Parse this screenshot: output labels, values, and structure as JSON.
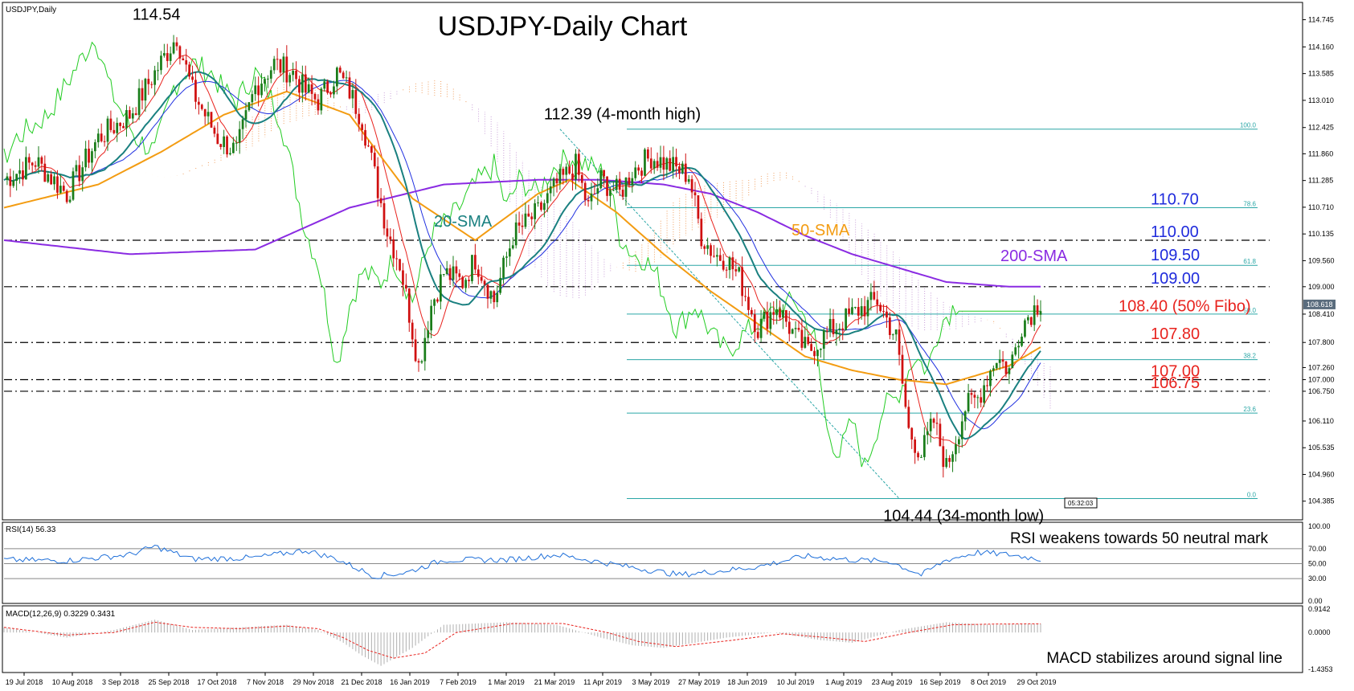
{
  "chart_data": {
    "type": "line",
    "main_panel_label": "USDJPY,Daily",
    "title": "USDJPY-Daily Chart",
    "ylim": [
      104.0,
      115.1
    ],
    "y_ticks": [
      "114.745",
      "114.160",
      "113.585",
      "113.010",
      "112.425",
      "111.860",
      "111.285",
      "110.710",
      "110.135",
      "109.560",
      "109.000",
      "108.410",
      "107.800",
      "107.260",
      "107.000",
      "106.750",
      "106.110",
      "105.535",
      "104.960",
      "104.385"
    ],
    "x_ticks": [
      "19 Jul 2018",
      "10 Aug 2018",
      "3 Sep 2018",
      "25 Sep 2018",
      "17 Oct 2018",
      "7 Nov 2018",
      "29 Nov 2018",
      "21 Dec 2018",
      "16 Jan 2019",
      "7 Feb 2019",
      "1 Mar 2019",
      "21 Mar 2019",
      "11 Apr 2019",
      "3 May 2019",
      "27 May 2019",
      "18 Jun 2019",
      "10 Jul 2019",
      "1 Aug 2019",
      "23 Aug 2019",
      "16 Sep 2019",
      "8 Oct 2019",
      "29 Oct 2019"
    ],
    "price_anchors": {
      "x": [
        0,
        10,
        20,
        30,
        40,
        48,
        55,
        60,
        68,
        74,
        80,
        86,
        92,
        96,
        100,
        106,
        110,
        114,
        118,
        122,
        126,
        128,
        132,
        136,
        140,
        146,
        150,
        156,
        162,
        170,
        176,
        182,
        186,
        190,
        196,
        200,
        206,
        212,
        218,
        222,
        226,
        230,
        234,
        240,
        246,
        252,
        256,
        262,
        268,
        272,
        278,
        284,
        288,
        292,
        296,
        300,
        306,
        310,
        316,
        320,
        324,
        330
      ],
      "y": [
        111.3,
        111.7,
        111.0,
        112.2,
        112.7,
        113.6,
        114.4,
        113.2,
        112.2,
        111.9,
        113.3,
        113.8,
        113.6,
        113.2,
        113.0,
        113.6,
        113.2,
        112.6,
        111.4,
        110.2,
        109.5,
        108.8,
        107.3,
        108.6,
        109.3,
        109.1,
        109.6,
        108.7,
        110.1,
        110.6,
        111.2,
        111.6,
        110.7,
        111.3,
        111.0,
        111.5,
        111.8,
        111.6,
        111.4,
        110.1,
        109.7,
        109.6,
        109.2,
        108.1,
        108.6,
        107.9,
        107.6,
        108.0,
        108.3,
        108.5,
        108.7,
        107.9,
        105.9,
        105.4,
        106.1,
        105.1,
        106.4,
        106.6,
        107.5,
        107.2,
        108.2,
        108.7
      ]
    },
    "lows_highs": [
      {
        "label": "114.54",
        "x": 46,
        "value": 114.54
      },
      {
        "label": "112.39 (4-month high)",
        "x": 177,
        "value": 112.39
      },
      {
        "label": "104.44 (34-month low)",
        "x": 285,
        "value": 104.44
      }
    ],
    "indicators": {
      "sma20_label": "20-SMA",
      "sma50_label": "50-SMA",
      "sma200_label": "200-SMA",
      "sma200_anchors": {
        "x": [
          0,
          40,
          80,
          110,
          140,
          170,
          190,
          210,
          225,
          240,
          255,
          270,
          285,
          300,
          320,
          330
        ],
        "y": [
          110.0,
          109.7,
          109.8,
          110.7,
          111.2,
          111.3,
          111.3,
          111.2,
          111.0,
          110.6,
          110.1,
          109.7,
          109.4,
          109.1,
          109.0,
          109.0
        ]
      },
      "sma50_anchors": {
        "x": [
          0,
          30,
          50,
          70,
          90,
          110,
          130,
          150,
          170,
          180,
          195,
          210,
          225,
          240,
          255,
          270,
          285,
          300,
          320,
          330
        ],
        "y": [
          110.7,
          111.2,
          111.9,
          112.7,
          113.2,
          112.7,
          110.9,
          110.0,
          111.0,
          111.3,
          110.6,
          109.7,
          108.9,
          108.2,
          107.5,
          107.2,
          107.0,
          106.9,
          107.3,
          107.7
        ]
      }
    },
    "horizontal_levels": [
      {
        "label": "110.70",
        "value": 110.7,
        "color": "#1f2bdc",
        "style": "fibo"
      },
      {
        "label": "110.00",
        "value": 110.0,
        "color": "#1f2bdc",
        "style": "dashdot"
      },
      {
        "label": "109.50",
        "value": 109.5,
        "color": "#1f2bdc",
        "style": "fibo"
      },
      {
        "label": "109.00",
        "value": 109.0,
        "color": "#1f2bdc",
        "style": "dashdot"
      },
      {
        "label": "108.40 (50% Fibo)",
        "value": 108.4,
        "color": "#e8231e",
        "style": "fibo"
      },
      {
        "label": "107.80",
        "value": 107.8,
        "color": "#e8231e",
        "style": "dashdot"
      },
      {
        "label": "107.00",
        "value": 107.0,
        "color": "#e8231e",
        "style": "dashdot"
      },
      {
        "label": "106.75",
        "value": 106.75,
        "color": "#e8231e",
        "style": "dashdot"
      }
    ],
    "fib_levels": [
      {
        "label": "100.0",
        "value": 112.39
      },
      {
        "label": "78.6",
        "value": 110.7
      },
      {
        "label": "61.8",
        "value": 109.46
      },
      {
        "label": "50.0",
        "value": 108.41
      },
      {
        "label": "38.2",
        "value": 107.43
      },
      {
        "label": "23.6",
        "value": 106.28
      },
      {
        "label": "0.0",
        "value": 104.44
      }
    ],
    "last_price_label": "108.618",
    "last_price": 108.618,
    "rsi": {
      "label": "RSI(14) 56.33",
      "ylim": [
        0,
        100
      ],
      "ticks": [
        "100.00",
        "70.00",
        "50.00",
        "30.00",
        "0.00"
      ],
      "levels": [
        70,
        50,
        30
      ],
      "annotation": "RSI weakens towards 50 neutral mark",
      "anchors": {
        "x": [
          0,
          20,
          40,
          48,
          60,
          80,
          96,
          106,
          118,
          128,
          140,
          160,
          176,
          190,
          200,
          215,
          230,
          240,
          255,
          270,
          282,
          292,
          300,
          310,
          320,
          330
        ],
        "y": [
          55,
          54,
          62,
          73,
          56,
          58,
          68,
          56,
          33,
          38,
          55,
          55,
          62,
          52,
          45,
          35,
          41,
          46,
          60,
          55,
          53,
          35,
          55,
          65,
          62,
          56
        ]
      }
    },
    "macd": {
      "label": "MACD(12,26,9) 0.3229 0.3431",
      "ylim": [
        -1.4353,
        0.9142
      ],
      "ticks": [
        "0.9142",
        "0.0000",
        "-1.4353"
      ],
      "annotation": "MACD stabilizes around signal line",
      "hist_anchors": {
        "x": [
          0,
          10,
          20,
          35,
          48,
          60,
          75,
          90,
          100,
          108,
          114,
          120,
          130,
          140,
          160,
          176,
          190,
          200,
          210,
          230,
          245,
          260,
          270,
          285,
          300,
          315,
          330
        ],
        "y": [
          0.2,
          0.0,
          -0.2,
          0.1,
          0.5,
          0.1,
          0.2,
          0.3,
          0.1,
          -0.4,
          -0.9,
          -1.3,
          -0.6,
          0.3,
          0.4,
          0.3,
          -0.2,
          -0.5,
          -0.6,
          -0.2,
          0.0,
          -0.3,
          -0.4,
          0.1,
          0.4,
          0.3,
          0.35
        ]
      },
      "signal_anchors": {
        "x": [
          0,
          10,
          20,
          35,
          48,
          60,
          75,
          90,
          100,
          108,
          116,
          124,
          134,
          144,
          162,
          178,
          192,
          202,
          214,
          232,
          248,
          262,
          274,
          288,
          302,
          316,
          330
        ],
        "y": [
          0.2,
          0.05,
          -0.1,
          0.0,
          0.4,
          0.2,
          0.15,
          0.25,
          0.15,
          -0.2,
          -0.7,
          -1.0,
          -0.8,
          0.0,
          0.35,
          0.35,
          0.0,
          -0.35,
          -0.55,
          -0.3,
          -0.05,
          -0.2,
          -0.35,
          0.0,
          0.3,
          0.33,
          0.34
        ]
      }
    },
    "misc_label": "05:32:03"
  }
}
